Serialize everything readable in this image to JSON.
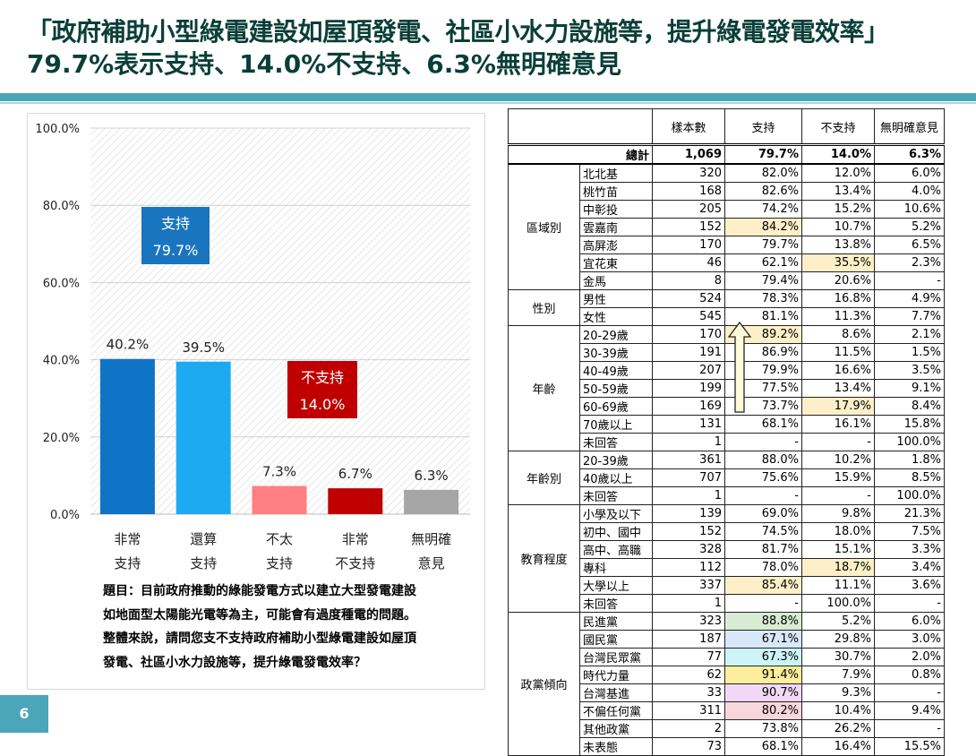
{
  "title": {
    "line1": "「政府補助小型綠電建設如屋頂發電、社區小水力設施等，提升綠電發電效率」",
    "line2": "79.7%表示支持、14.0%不支持、6.3%無明確意見"
  },
  "page_number": "6",
  "question": {
    "line1": "題目：目前政府推動的綠能發電方式以建立大型發電建設",
    "line2": "如地面型太陽能光電等為主，可能會有過度種電的問題。",
    "line3": "整體來說，請問您支不支持政府補助小型綠電建設如屋頂",
    "line4": "發電、社區小水力設施等，提升綠電發電效率？"
  },
  "chart_data": {
    "type": "bar",
    "categories": [
      [
        "非常",
        "支持"
      ],
      [
        "還算",
        "支持"
      ],
      [
        "不太",
        "支持"
      ],
      [
        "非常",
        "不支持"
      ],
      [
        "無明確",
        "意見"
      ]
    ],
    "values": [
      40.2,
      39.5,
      7.3,
      6.7,
      6.3
    ],
    "value_labels": [
      "40.2%",
      "39.5%",
      "7.3%",
      "6.7%",
      "6.3%"
    ],
    "bar_colors": [
      "#0f74c6",
      "#1eaaf0",
      "#ff7f82",
      "#c00000",
      "#a6a6a6"
    ],
    "ylim": [
      0,
      100
    ],
    "yticks": [
      "0.0%",
      "20.0%",
      "40.0%",
      "60.0%",
      "80.0%",
      "100.0%"
    ],
    "grid": true,
    "annotations": [
      {
        "label": "支持",
        "value": "79.7%",
        "color": "#1a75bf"
      },
      {
        "label": "不支持",
        "value": "14.0%",
        "color": "#c00000"
      }
    ]
  },
  "table": {
    "headers": [
      "樣本數",
      "支持",
      "不支持",
      "無明確意見"
    ],
    "total": {
      "label": "總計",
      "values": [
        "1,069",
        "79.7%",
        "14.0%",
        "6.3%"
      ]
    },
    "groups": [
      {
        "name": "區域別",
        "rows": [
          {
            "label": "北北基",
            "values": [
              "320",
              "82.0%",
              "12.0%",
              "6.0%"
            ]
          },
          {
            "label": "桃竹苗",
            "values": [
              "168",
              "82.6%",
              "13.4%",
              "4.0%"
            ]
          },
          {
            "label": "中彰投",
            "values": [
              "205",
              "74.2%",
              "15.2%",
              "10.6%"
            ]
          },
          {
            "label": "雲嘉南",
            "values": [
              "152",
              "84.2%",
              "10.7%",
              "5.2%"
            ],
            "hl": {
              "1": "#fdf0c8"
            }
          },
          {
            "label": "高屏澎",
            "values": [
              "170",
              "79.7%",
              "13.8%",
              "6.5%"
            ]
          },
          {
            "label": "宜花東",
            "values": [
              "46",
              "62.1%",
              "35.5%",
              "2.3%"
            ],
            "hl": {
              "2": "#fdf0c8"
            }
          },
          {
            "label": "金馬",
            "values": [
              "8",
              "79.4%",
              "20.6%",
              "-"
            ]
          }
        ]
      },
      {
        "name": "性別",
        "rows": [
          {
            "label": "男性",
            "values": [
              "524",
              "78.3%",
              "16.8%",
              "4.9%"
            ]
          },
          {
            "label": "女性",
            "values": [
              "545",
              "81.1%",
              "11.3%",
              "7.7%"
            ]
          }
        ]
      },
      {
        "name": "年齡",
        "rows": [
          {
            "label": "20-29歲",
            "values": [
              "170",
              "89.2%",
              "8.6%",
              "2.1%"
            ],
            "hl": {
              "1": "#fdf0c8"
            }
          },
          {
            "label": "30-39歲",
            "values": [
              "191",
              "86.9%",
              "11.5%",
              "1.5%"
            ]
          },
          {
            "label": "40-49歲",
            "values": [
              "207",
              "79.9%",
              "16.6%",
              "3.5%"
            ]
          },
          {
            "label": "50-59歲",
            "values": [
              "199",
              "77.5%",
              "13.4%",
              "9.1%"
            ]
          },
          {
            "label": "60-69歲",
            "values": [
              "169",
              "73.7%",
              "17.9%",
              "8.4%"
            ],
            "hl": {
              "2": "#fdf0c8"
            }
          },
          {
            "label": "70歲以上",
            "values": [
              "131",
              "68.1%",
              "16.1%",
              "15.8%"
            ]
          },
          {
            "label": "未回答",
            "values": [
              "1",
              "-",
              "-",
              "100.0%"
            ]
          }
        ]
      },
      {
        "name": "年齡別",
        "rows": [
          {
            "label": "20-39歲",
            "values": [
              "361",
              "88.0%",
              "10.2%",
              "1.8%"
            ]
          },
          {
            "label": "40歲以上",
            "values": [
              "707",
              "75.6%",
              "15.9%",
              "8.5%"
            ]
          },
          {
            "label": "未回答",
            "values": [
              "1",
              "-",
              "-",
              "100.0%"
            ]
          }
        ]
      },
      {
        "name": "教育程度",
        "rows": [
          {
            "label": "小學及以下",
            "values": [
              "139",
              "69.0%",
              "9.8%",
              "21.3%"
            ]
          },
          {
            "label": "初中、國中",
            "values": [
              "152",
              "74.5%",
              "18.0%",
              "7.5%"
            ]
          },
          {
            "label": "高中、高職",
            "values": [
              "328",
              "81.7%",
              "15.1%",
              "3.3%"
            ]
          },
          {
            "label": "專科",
            "values": [
              "112",
              "78.0%",
              "18.7%",
              "3.4%"
            ],
            "hl": {
              "2": "#fdf0c8"
            }
          },
          {
            "label": "大學以上",
            "values": [
              "337",
              "85.4%",
              "11.1%",
              "3.6%"
            ],
            "hl": {
              "1": "#fdf0c8"
            }
          },
          {
            "label": "未回答",
            "values": [
              "1",
              "-",
              "100.0%",
              "-"
            ]
          }
        ]
      },
      {
        "name": "政黨傾向",
        "rows": [
          {
            "label": "民進黨",
            "values": [
              "323",
              "88.8%",
              "5.2%",
              "6.0%"
            ],
            "hl": {
              "1": "#d7ecd2"
            }
          },
          {
            "label": "國民黨",
            "values": [
              "187",
              "67.1%",
              "29.8%",
              "3.0%"
            ],
            "hl": {
              "1": "#d9e8f8"
            }
          },
          {
            "label": "台灣民眾黨",
            "values": [
              "77",
              "67.3%",
              "30.7%",
              "2.0%"
            ],
            "hl": {
              "1": "#cdf4f7"
            }
          },
          {
            "label": "時代力量",
            "values": [
              "62",
              "91.4%",
              "7.9%",
              "0.8%"
            ],
            "hl": {
              "1": "#fbee9c"
            }
          },
          {
            "label": "台灣基進",
            "values": [
              "33",
              "90.7%",
              "9.3%",
              "-"
            ],
            "hl": {
              "1": "#f2d8f6"
            }
          },
          {
            "label": "不偏任何黨",
            "values": [
              "311",
              "80.2%",
              "10.4%",
              "9.4%"
            ],
            "hl": {
              "1": "#f7d6dc"
            }
          },
          {
            "label": "其他政黨",
            "values": [
              "2",
              "73.8%",
              "26.2%",
              "-"
            ]
          },
          {
            "label": "未表態",
            "values": [
              "73",
              "68.1%",
              "16.4%",
              "15.5%"
            ]
          }
        ]
      }
    ]
  }
}
